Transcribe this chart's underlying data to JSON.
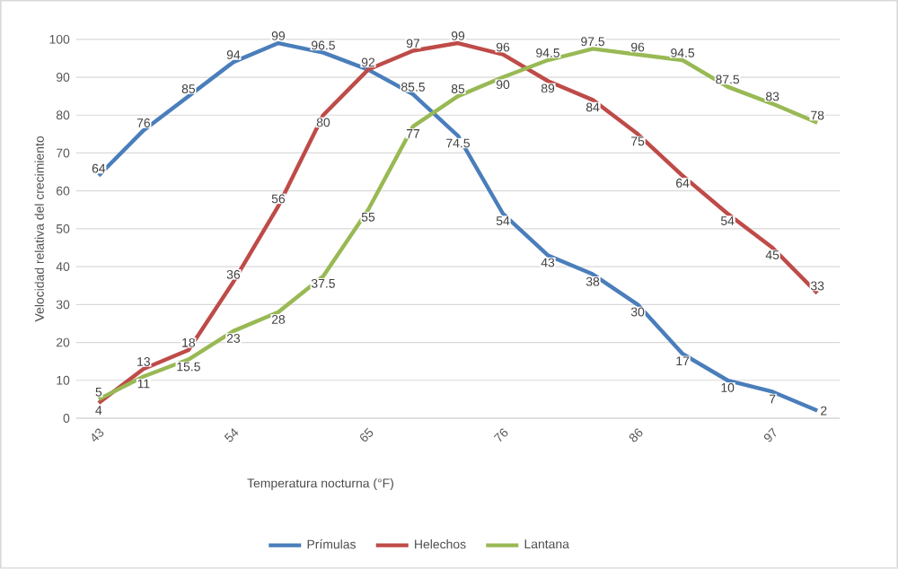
{
  "chart_data": {
    "type": "line",
    "xlabel": "Temperatura nocturna (°F)",
    "ylabel": "Velocidad relativa del crecimiento",
    "categories": [
      "43",
      null,
      null,
      "54",
      null,
      null,
      "65",
      null,
      null,
      "76",
      null,
      null,
      "86",
      null,
      null,
      "97",
      null
    ],
    "series": [
      {
        "name": "Prímulas",
        "color": "#4a7ebb",
        "values": [
          64,
          76,
          85,
          94,
          99,
          96.5,
          92,
          85.5,
          74.5,
          54,
          43,
          38,
          30,
          17,
          10,
          7,
          2
        ],
        "value_labels": [
          "64",
          "76",
          "85",
          "94",
          "99",
          "96.5",
          "92",
          "85.5",
          "74.5",
          "54",
          "43",
          "38",
          "30",
          "17",
          "10",
          "7",
          "2"
        ]
      },
      {
        "name": "Helechos",
        "color": "#be4b48",
        "values": [
          4,
          13,
          18,
          36,
          56,
          80,
          92,
          97,
          99,
          96,
          89,
          84,
          75,
          64,
          54,
          45,
          33
        ],
        "value_labels": [
          "4",
          "13",
          "18",
          "36",
          "56",
          "80",
          null,
          "97",
          "99",
          "96",
          "89",
          "84",
          "75",
          "64",
          "54",
          "45",
          "33"
        ]
      },
      {
        "name": "Lantana",
        "color": "#98b954",
        "values": [
          5,
          11,
          15.5,
          23,
          28,
          37.5,
          55,
          77,
          85,
          90,
          94.5,
          97.5,
          96,
          94.5,
          87.5,
          83,
          78
        ],
        "value_labels": [
          "5",
          "11",
          "15.5",
          "23",
          "28",
          "37.5",
          "55",
          "77",
          "85",
          "90",
          "94.5",
          "97.5",
          "96",
          "94.5",
          "87.5",
          "83",
          "78"
        ]
      }
    ],
    "ylim": [
      0,
      100
    ],
    "yticks": [
      0,
      10,
      20,
      30,
      40,
      50,
      60,
      70,
      80,
      90,
      100
    ],
    "grid": "y",
    "legend": "bottom"
  }
}
